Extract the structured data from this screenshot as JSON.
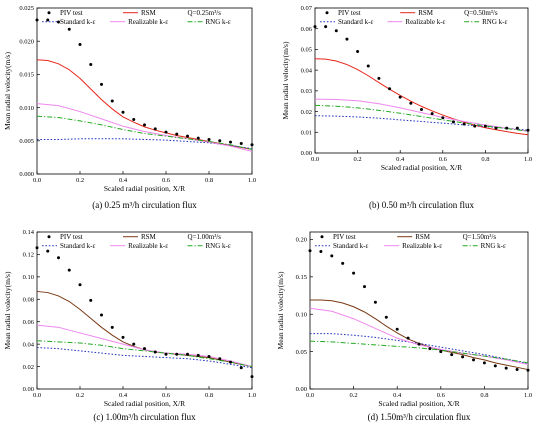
{
  "chart_data": [
    {
      "type": "line",
      "caption": "(a) 0.25 m³/h circulation flux",
      "flow_label": "Q=0.25m³/s",
      "xlabel": "Scaled radial position, X/R",
      "ylabel": "Mean radial velocity(m/s)",
      "xlim": [
        0,
        1.0
      ],
      "ylim": [
        0,
        0.025
      ],
      "xticks": [
        0.0,
        0.2,
        0.4,
        0.6,
        0.8,
        1.0
      ],
      "yticks": [
        0.0,
        0.005,
        0.01,
        0.015,
        0.02,
        0.025
      ],
      "xtick_labels": [
        "0.0",
        "0.2",
        "0.4",
        "0.6",
        "0.8",
        "1.0"
      ],
      "ytick_labels": [
        "0.000",
        "0.005",
        "0.010",
        "0.015",
        "0.020",
        "0.025"
      ],
      "legend": "top",
      "series": [
        {
          "name": "PIV test",
          "style": "dots",
          "color": "#000000",
          "x": [
            0.0,
            0.05,
            0.1,
            0.15,
            0.2,
            0.25,
            0.3,
            0.35,
            0.4,
            0.45,
            0.5,
            0.55,
            0.6,
            0.65,
            0.7,
            0.75,
            0.8,
            0.85,
            0.9,
            0.95,
            1.0
          ],
          "y": [
            0.0232,
            0.0232,
            0.0229,
            0.0218,
            0.0195,
            0.0165,
            0.0135,
            0.011,
            0.0093,
            0.0082,
            0.0074,
            0.0068,
            0.0063,
            0.006,
            0.0057,
            0.0054,
            0.0052,
            0.005,
            0.0048,
            0.0046,
            0.0044
          ]
        },
        {
          "name": "RSM",
          "style": "solid",
          "color": "#e8261c",
          "x": [
            0.0,
            0.05,
            0.1,
            0.15,
            0.2,
            0.25,
            0.3,
            0.35,
            0.4,
            0.45,
            0.5,
            0.55,
            0.6,
            0.65,
            0.7,
            0.75,
            0.8,
            0.85,
            0.9,
            0.95,
            1.0
          ],
          "y": [
            0.0172,
            0.0171,
            0.0166,
            0.0157,
            0.0144,
            0.0128,
            0.0112,
            0.0098,
            0.0086,
            0.0078,
            0.0071,
            0.0066,
            0.0062,
            0.0058,
            0.0055,
            0.0052,
            0.0049,
            0.0046,
            0.0043,
            0.004,
            0.0037
          ]
        },
        {
          "name": "Standard k-ε",
          "style": "dotted",
          "color": "#2233bb",
          "x": [
            0.0,
            0.1,
            0.2,
            0.3,
            0.4,
            0.5,
            0.6,
            0.7,
            0.8,
            0.9,
            1.0
          ],
          "y": [
            0.0052,
            0.0052,
            0.0053,
            0.0053,
            0.0053,
            0.0052,
            0.0051,
            0.0049,
            0.0047,
            0.0043,
            0.0038
          ]
        },
        {
          "name": "Realizable k-ε",
          "style": "solid",
          "color": "#ee88ee",
          "x": [
            0.0,
            0.1,
            0.2,
            0.3,
            0.4,
            0.5,
            0.6,
            0.7,
            0.8,
            0.9,
            1.0
          ],
          "y": [
            0.0106,
            0.0103,
            0.0094,
            0.0083,
            0.0072,
            0.0064,
            0.0058,
            0.0053,
            0.0048,
            0.0042,
            0.0034
          ]
        },
        {
          "name": "RNG k-ε",
          "style": "dashdot",
          "color": "#22aa22",
          "x": [
            0.0,
            0.1,
            0.2,
            0.3,
            0.4,
            0.5,
            0.6,
            0.7,
            0.8,
            0.9,
            1.0
          ],
          "y": [
            0.0087,
            0.0085,
            0.008,
            0.0074,
            0.0067,
            0.0061,
            0.0057,
            0.0053,
            0.0049,
            0.0044,
            0.0037
          ]
        }
      ]
    },
    {
      "type": "line",
      "caption": "(b) 0.50 m³/h circulation flux",
      "flow_label": "Q=0.50m³/s",
      "xlabel": "Scaled radial position, X/R",
      "ylabel": "Mean radial velocity(m/s)",
      "xlim": [
        0,
        1.0
      ],
      "ylim": [
        0,
        0.07
      ],
      "xticks": [
        0.0,
        0.2,
        0.4,
        0.6,
        0.8,
        1.0
      ],
      "yticks": [
        0.0,
        0.01,
        0.02,
        0.03,
        0.04,
        0.05,
        0.06,
        0.07
      ],
      "xtick_labels": [
        "0.0",
        "0.2",
        "0.4",
        "0.6",
        "0.8",
        "1.0"
      ],
      "ytick_labels": [
        "0.00",
        "0.01",
        "0.02",
        "0.03",
        "0.04",
        "0.05",
        "0.06",
        "0.07"
      ],
      "legend": "top",
      "series": [
        {
          "name": "PIV test",
          "style": "dots",
          "color": "#000000",
          "x": [
            0.0,
            0.05,
            0.1,
            0.15,
            0.2,
            0.25,
            0.3,
            0.35,
            0.4,
            0.45,
            0.5,
            0.55,
            0.6,
            0.65,
            0.7,
            0.75,
            0.8,
            0.85,
            0.9,
            0.95,
            1.0
          ],
          "y": [
            0.061,
            0.061,
            0.059,
            0.055,
            0.049,
            0.042,
            0.036,
            0.031,
            0.027,
            0.024,
            0.021,
            0.019,
            0.017,
            0.015,
            0.014,
            0.013,
            0.013,
            0.012,
            0.012,
            0.012,
            0.011
          ]
        },
        {
          "name": "RSM",
          "style": "solid",
          "color": "#e8261c",
          "x": [
            0.0,
            0.05,
            0.1,
            0.15,
            0.2,
            0.25,
            0.3,
            0.35,
            0.4,
            0.45,
            0.5,
            0.55,
            0.6,
            0.65,
            0.7,
            0.75,
            0.8,
            0.85,
            0.9,
            0.95,
            1.0
          ],
          "y": [
            0.0455,
            0.0453,
            0.0444,
            0.0427,
            0.0403,
            0.0373,
            0.034,
            0.0308,
            0.0278,
            0.025,
            0.0225,
            0.0203,
            0.0183,
            0.0165,
            0.0149,
            0.0134,
            0.0122,
            0.0112,
            0.0103,
            0.0095,
            0.0088
          ]
        },
        {
          "name": "Standard k-ε",
          "style": "dotted",
          "color": "#2233bb",
          "x": [
            0.0,
            0.1,
            0.2,
            0.3,
            0.4,
            0.5,
            0.6,
            0.7,
            0.8,
            0.9,
            1.0
          ],
          "y": [
            0.018,
            0.0178,
            0.0174,
            0.0168,
            0.016,
            0.0152,
            0.0144,
            0.0136,
            0.0128,
            0.012,
            0.011
          ]
        },
        {
          "name": "Realizable k-ε",
          "style": "solid",
          "color": "#ee88ee",
          "x": [
            0.0,
            0.1,
            0.2,
            0.3,
            0.4,
            0.5,
            0.6,
            0.7,
            0.8,
            0.9,
            1.0
          ],
          "y": [
            0.026,
            0.0258,
            0.0252,
            0.0238,
            0.0218,
            0.0195,
            0.0172,
            0.0152,
            0.0135,
            0.012,
            0.0105
          ]
        },
        {
          "name": "RNG k-ε",
          "style": "dashdot",
          "color": "#22aa22",
          "x": [
            0.0,
            0.1,
            0.2,
            0.3,
            0.4,
            0.5,
            0.6,
            0.7,
            0.8,
            0.9,
            1.0
          ],
          "y": [
            0.023,
            0.0226,
            0.0218,
            0.0206,
            0.0192,
            0.0176,
            0.016,
            0.0145,
            0.0131,
            0.0118,
            0.0105
          ]
        }
      ]
    },
    {
      "type": "line",
      "caption": "(c) 1.00m³/h circulation flux",
      "flow_label": "Q=1.00m³/s",
      "xlabel": "Scaled radial position, X/R",
      "ylabel": "Mean radial volecity(m/s)",
      "xlim": [
        0,
        1.0
      ],
      "ylim": [
        0,
        0.14
      ],
      "xticks": [
        0.0,
        0.2,
        0.4,
        0.6,
        0.8,
        1.0
      ],
      "yticks": [
        0.0,
        0.02,
        0.04,
        0.06,
        0.08,
        0.1,
        0.12,
        0.14
      ],
      "xtick_labels": [
        "0.0",
        "0.2",
        "0.4",
        "0.6",
        "0.8",
        "1.0"
      ],
      "ytick_labels": [
        "0.00",
        "0.02",
        "0.04",
        "0.06",
        "0.08",
        "0.10",
        "0.12",
        "0.14"
      ],
      "legend": "top",
      "series": [
        {
          "name": "PIV test",
          "style": "dots",
          "color": "#000000",
          "x": [
            0.0,
            0.05,
            0.1,
            0.15,
            0.2,
            0.25,
            0.3,
            0.35,
            0.4,
            0.45,
            0.5,
            0.55,
            0.6,
            0.65,
            0.7,
            0.75,
            0.8,
            0.85,
            0.9,
            0.95,
            1.0
          ],
          "y": [
            0.126,
            0.123,
            0.117,
            0.106,
            0.093,
            0.079,
            0.066,
            0.055,
            0.046,
            0.04,
            0.036,
            0.033,
            0.031,
            0.031,
            0.031,
            0.03,
            0.029,
            0.027,
            0.024,
            0.019,
            0.011
          ]
        },
        {
          "name": "RSM",
          "style": "solid",
          "color": "#7a3a14",
          "x": [
            0.0,
            0.05,
            0.1,
            0.15,
            0.2,
            0.25,
            0.3,
            0.35,
            0.4,
            0.45,
            0.5,
            0.55,
            0.6,
            0.65,
            0.7,
            0.75,
            0.8,
            0.85,
            0.9,
            0.95,
            1.0
          ],
          "y": [
            0.087,
            0.086,
            0.083,
            0.078,
            0.071,
            0.063,
            0.055,
            0.048,
            0.042,
            0.038,
            0.035,
            0.033,
            0.032,
            0.031,
            0.03,
            0.029,
            0.028,
            0.026,
            0.024,
            0.022,
            0.02
          ]
        },
        {
          "name": "Standard k-ε",
          "style": "dotted",
          "color": "#2233bb",
          "x": [
            0.0,
            0.1,
            0.2,
            0.3,
            0.4,
            0.5,
            0.6,
            0.7,
            0.8,
            0.9,
            1.0
          ],
          "y": [
            0.037,
            0.036,
            0.034,
            0.032,
            0.03,
            0.029,
            0.028,
            0.027,
            0.025,
            0.022,
            0.019
          ]
        },
        {
          "name": "Realizable k-ε",
          "style": "solid",
          "color": "#ee88ee",
          "x": [
            0.0,
            0.1,
            0.2,
            0.3,
            0.4,
            0.5,
            0.6,
            0.7,
            0.8,
            0.9,
            1.0
          ],
          "y": [
            0.057,
            0.055,
            0.05,
            0.045,
            0.04,
            0.035,
            0.032,
            0.031,
            0.029,
            0.025,
            0.02
          ]
        },
        {
          "name": "RNG k-ε",
          "style": "dashdot",
          "color": "#22aa22",
          "x": [
            0.0,
            0.1,
            0.2,
            0.3,
            0.4,
            0.5,
            0.6,
            0.7,
            0.8,
            0.9,
            1.0
          ],
          "y": [
            0.043,
            0.042,
            0.041,
            0.039,
            0.036,
            0.034,
            0.032,
            0.03,
            0.027,
            0.024,
            0.02
          ]
        }
      ]
    },
    {
      "type": "line",
      "caption": "(d) 1.50m³/h circulation flux",
      "flow_label": "Q=1.50m³/s",
      "xlabel": "Scaled radial position, X/R",
      "ylabel": "Mean radial volecity(m/s)",
      "xlim": [
        0,
        1.0
      ],
      "ylim": [
        0,
        0.21
      ],
      "xticks": [
        0.0,
        0.2,
        0.4,
        0.6,
        0.8,
        1.0
      ],
      "yticks": [
        0.0,
        0.05,
        0.1,
        0.15,
        0.2
      ],
      "xtick_labels": [
        "0.0",
        "0.2",
        "0.4",
        "0.6",
        "0.8",
        "1.0"
      ],
      "ytick_labels": [
        "0.00",
        "0.05",
        "0.10",
        "0.15",
        "0.20"
      ],
      "legend": "top",
      "series": [
        {
          "name": "PIV test",
          "style": "dots",
          "color": "#000000",
          "x": [
            0.0,
            0.05,
            0.1,
            0.15,
            0.2,
            0.25,
            0.3,
            0.35,
            0.4,
            0.45,
            0.5,
            0.55,
            0.6,
            0.65,
            0.7,
            0.75,
            0.8,
            0.85,
            0.9,
            0.95,
            1.0
          ],
          "y": [
            0.185,
            0.184,
            0.178,
            0.168,
            0.155,
            0.137,
            0.116,
            0.096,
            0.08,
            0.068,
            0.06,
            0.054,
            0.05,
            0.046,
            0.043,
            0.039,
            0.035,
            0.031,
            0.028,
            0.026,
            0.025
          ]
        },
        {
          "name": "RSM",
          "style": "solid",
          "color": "#7a3a14",
          "x": [
            0.0,
            0.05,
            0.1,
            0.15,
            0.2,
            0.25,
            0.3,
            0.35,
            0.4,
            0.45,
            0.5,
            0.55,
            0.6,
            0.65,
            0.7,
            0.75,
            0.8,
            0.85,
            0.9,
            0.95,
            1.0
          ],
          "y": [
            0.119,
            0.119,
            0.118,
            0.115,
            0.11,
            0.103,
            0.094,
            0.084,
            0.075,
            0.067,
            0.061,
            0.056,
            0.052,
            0.049,
            0.046,
            0.042,
            0.039,
            0.035,
            0.032,
            0.029,
            0.026
          ]
        },
        {
          "name": "Standard k-ε",
          "style": "dotted",
          "color": "#2233bb",
          "x": [
            0.0,
            0.1,
            0.2,
            0.3,
            0.4,
            0.5,
            0.6,
            0.7,
            0.8,
            0.9,
            1.0
          ],
          "y": [
            0.074,
            0.074,
            0.072,
            0.069,
            0.065,
            0.061,
            0.056,
            0.051,
            0.046,
            0.04,
            0.034
          ]
        },
        {
          "name": "Realizable k-ε",
          "style": "solid",
          "color": "#ee88ee",
          "x": [
            0.0,
            0.1,
            0.2,
            0.3,
            0.4,
            0.5,
            0.6,
            0.7,
            0.8,
            0.9,
            1.0
          ],
          "y": [
            0.108,
            0.104,
            0.094,
            0.081,
            0.068,
            0.059,
            0.053,
            0.048,
            0.044,
            0.039,
            0.033
          ]
        },
        {
          "name": "RNG k-ε",
          "style": "dashdot",
          "color": "#22aa22",
          "x": [
            0.0,
            0.1,
            0.2,
            0.3,
            0.4,
            0.5,
            0.6,
            0.7,
            0.8,
            0.9,
            1.0
          ],
          "y": [
            0.064,
            0.063,
            0.061,
            0.059,
            0.057,
            0.055,
            0.052,
            0.048,
            0.044,
            0.04,
            0.035
          ]
        }
      ]
    }
  ]
}
